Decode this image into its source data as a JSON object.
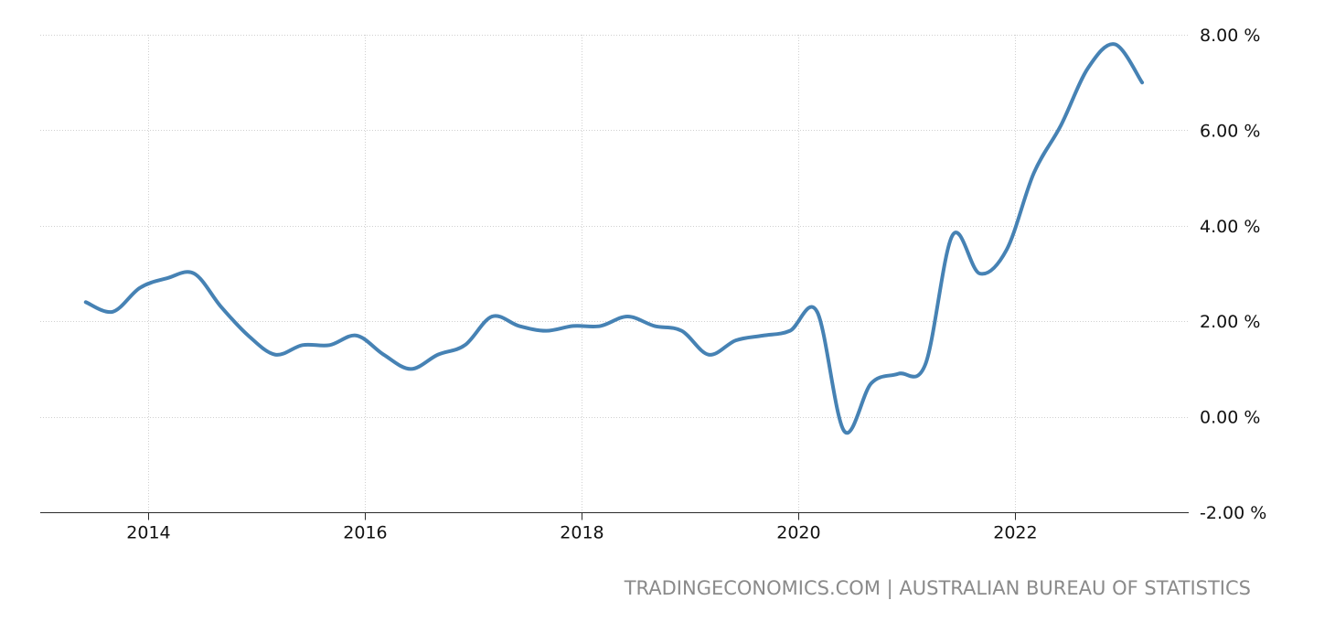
{
  "chart_data": {
    "type": "line",
    "title": "",
    "xlabel": "",
    "ylabel": "",
    "line_color": "#4682b4",
    "grid": true,
    "y_axis_position": "right",
    "ylim": [
      -2,
      8
    ],
    "yticks": [
      -2,
      0,
      2,
      4,
      6,
      8
    ],
    "ytick_labels": [
      "-2.00 %",
      "0.00 %",
      "2.00 %",
      "4.00 %",
      "6.00 %",
      "8.00 %"
    ],
    "xlim": [
      2013.0,
      2023.6
    ],
    "xticks": [
      2014,
      2016,
      2018,
      2020,
      2022
    ],
    "xtick_labels": [
      "2014",
      "2016",
      "2018",
      "2020",
      "2022"
    ],
    "series": [
      {
        "x": [
          2013.42,
          2013.67,
          2013.92,
          2014.17,
          2014.42,
          2014.67,
          2014.92,
          2015.17,
          2015.42,
          2015.67,
          2015.92,
          2016.17,
          2016.42,
          2016.67,
          2016.92,
          2017.17,
          2017.42,
          2017.67,
          2017.92,
          2018.17,
          2018.42,
          2018.67,
          2018.92,
          2019.17,
          2019.42,
          2019.67,
          2019.92,
          2020.17,
          2020.42,
          2020.67,
          2020.92,
          2021.17,
          2021.42,
          2021.67,
          2021.92,
          2022.17,
          2022.42,
          2022.67,
          2022.92,
          2023.17
        ],
        "values": [
          2.4,
          2.2,
          2.7,
          2.9,
          3.0,
          2.3,
          1.7,
          1.3,
          1.5,
          1.5,
          1.7,
          1.3,
          1.0,
          1.3,
          1.5,
          2.1,
          1.9,
          1.8,
          1.9,
          1.9,
          2.1,
          1.9,
          1.8,
          1.3,
          1.6,
          1.7,
          1.8,
          2.2,
          -0.3,
          0.7,
          0.9,
          1.1,
          3.8,
          3.0,
          3.5,
          5.1,
          6.1,
          7.3,
          7.8,
          7.0
        ]
      }
    ]
  },
  "footer": {
    "source": "TRADINGECONOMICS.COM | AUSTRALIAN BUREAU OF STATISTICS"
  }
}
